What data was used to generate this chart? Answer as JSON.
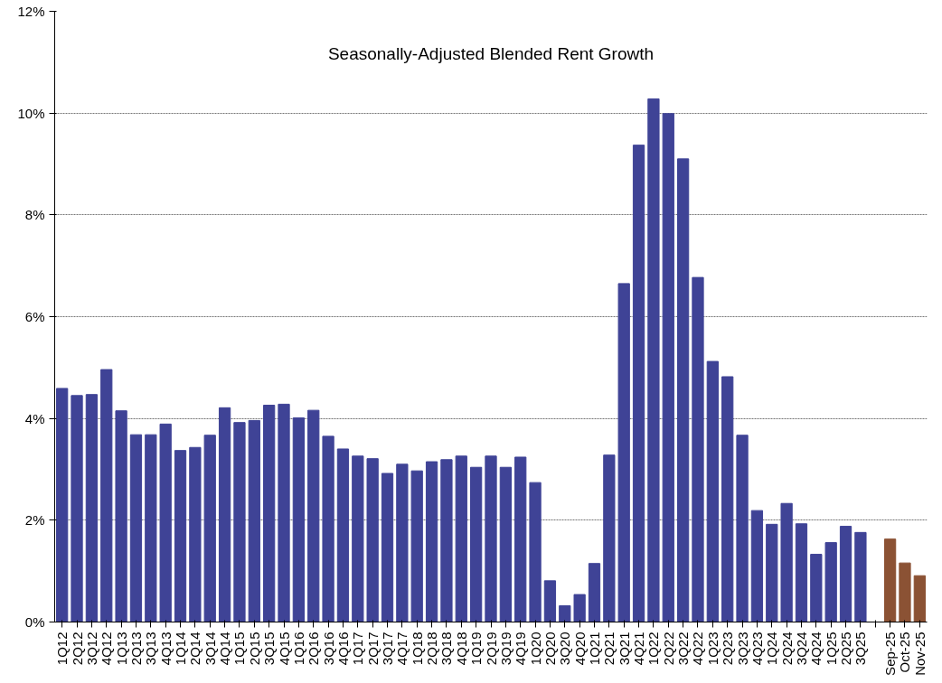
{
  "chart_data": {
    "type": "bar",
    "title": "Seasonally-Adjusted Blended Rent Growth",
    "categories": [
      "1Q12",
      "2Q12",
      "3Q12",
      "4Q12",
      "1Q13",
      "2Q13",
      "3Q13",
      "4Q13",
      "1Q14",
      "2Q14",
      "3Q14",
      "4Q14",
      "1Q15",
      "2Q15",
      "3Q15",
      "4Q15",
      "1Q16",
      "2Q16",
      "3Q16",
      "4Q16",
      "1Q17",
      "2Q17",
      "3Q17",
      "4Q17",
      "1Q18",
      "2Q18",
      "3Q18",
      "4Q18",
      "1Q19",
      "2Q19",
      "3Q19",
      "4Q19",
      "1Q20",
      "2Q20",
      "3Q20",
      "4Q20",
      "1Q21",
      "2Q21",
      "3Q21",
      "4Q21",
      "1Q22",
      "2Q22",
      "3Q22",
      "4Q22",
      "1Q23",
      "2Q23",
      "3Q23",
      "4Q23",
      "1Q24",
      "2Q24",
      "3Q24",
      "4Q24",
      "1Q25",
      "2Q25",
      "3Q25",
      null,
      "Sep-25",
      "Oct-25",
      "Nov-25"
    ],
    "values": [
      4.59,
      4.45,
      4.47,
      4.96,
      4.15,
      3.68,
      3.68,
      3.89,
      3.37,
      3.43,
      3.67,
      4.21,
      3.92,
      3.96,
      4.26,
      4.28,
      4.01,
      4.16,
      3.65,
      3.4,
      3.26,
      3.21,
      2.92,
      3.1,
      2.97,
      3.15,
      3.19,
      3.26,
      3.04,
      3.26,
      3.04,
      3.24,
      2.74,
      0.81,
      0.32,
      0.54,
      1.15,
      3.28,
      6.65,
      9.37,
      10.28,
      9.99,
      9.1,
      6.77,
      5.12,
      4.82,
      3.67,
      2.19,
      1.92,
      2.33,
      1.93,
      1.33,
      1.56,
      1.88,
      1.76,
      null,
      1.63,
      1.16,
      0.91
    ],
    "colors": [
      "#3f4396",
      "#3f4396",
      "#3f4396",
      "#3f4396",
      "#3f4396",
      "#3f4396",
      "#3f4396",
      "#3f4396",
      "#3f4396",
      "#3f4396",
      "#3f4396",
      "#3f4396",
      "#3f4396",
      "#3f4396",
      "#3f4396",
      "#3f4396",
      "#3f4396",
      "#3f4396",
      "#3f4396",
      "#3f4396",
      "#3f4396",
      "#3f4396",
      "#3f4396",
      "#3f4396",
      "#3f4396",
      "#3f4396",
      "#3f4396",
      "#3f4396",
      "#3f4396",
      "#3f4396",
      "#3f4396",
      "#3f4396",
      "#3f4396",
      "#3f4396",
      "#3f4396",
      "#3f4396",
      "#3f4396",
      "#3f4396",
      "#3f4396",
      "#3f4396",
      "#3f4396",
      "#3f4396",
      "#3f4396",
      "#3f4396",
      "#3f4396",
      "#3f4396",
      "#3f4396",
      "#3f4396",
      "#3f4396",
      "#3f4396",
      "#3f4396",
      "#3f4396",
      "#3f4396",
      "#3f4396",
      "#3f4396",
      null,
      "#8b5234",
      "#8b5234",
      "#8b5234"
    ],
    "ylim": [
      0,
      12
    ],
    "yticks": [
      {
        "value": 0,
        "label": "0%"
      },
      {
        "value": 2,
        "label": "2%"
      },
      {
        "value": 4,
        "label": "4%"
      },
      {
        "value": 6,
        "label": "6%"
      },
      {
        "value": 8,
        "label": "8%"
      },
      {
        "value": 10,
        "label": "10%"
      },
      {
        "value": 12,
        "label": "12%"
      }
    ],
    "grid": "y"
  }
}
